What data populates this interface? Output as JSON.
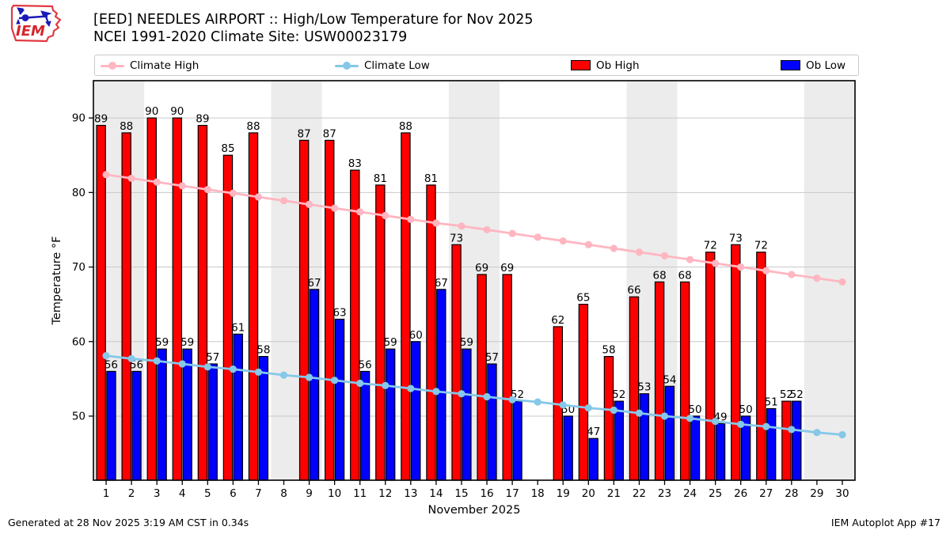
{
  "header": {
    "title_line1": "[EED] NEEDLES AIRPORT :: High/Low Temperature for Nov 2025",
    "title_line2": "NCEI 1991-2020 Climate Site: USW00023179",
    "logo_text": "IEM"
  },
  "legend": {
    "items": [
      {
        "label": "Climate High",
        "marker": "line-dot",
        "color": "#ffb6c1"
      },
      {
        "label": "Climate Low",
        "marker": "line-dot",
        "color": "#85c8e8"
      },
      {
        "label": "Ob High",
        "marker": "swatch",
        "color": "#ff0000"
      },
      {
        "label": "Ob Low",
        "marker": "swatch",
        "color": "#0000ff"
      }
    ]
  },
  "footer": {
    "generated": "Generated at 28 Nov 2025 3:19 AM CST in 0.34s",
    "app": "IEM Autoplot App #17"
  },
  "chart_data": {
    "type": "bar",
    "title": "[EED] NEEDLES AIRPORT :: High/Low Temperature for Nov 2025",
    "subtitle": "NCEI 1991-2020 Climate Site: USW00023179",
    "xlabel": "November 2025",
    "ylabel": "Temperature °F",
    "x": [
      1,
      2,
      3,
      4,
      5,
      6,
      7,
      8,
      9,
      10,
      11,
      12,
      13,
      14,
      15,
      16,
      17,
      18,
      19,
      20,
      21,
      22,
      23,
      24,
      25,
      26,
      27,
      28,
      29,
      30
    ],
    "ylim": [
      41.4,
      95
    ],
    "yticks": [
      50,
      60,
      70,
      80,
      90
    ],
    "grid": "horizontal",
    "legend_position": "top",
    "shaded_day_ranges": [
      [
        0.5,
        2.5
      ],
      [
        7.5,
        9.5
      ],
      [
        14.5,
        16.5
      ],
      [
        21.5,
        23.5
      ],
      [
        28.5,
        30.5
      ]
    ],
    "shade_color": "#ececec",
    "series": [
      {
        "name": "Ob High",
        "type": "bar",
        "color": "#ff0000",
        "values": [
          89,
          88,
          90,
          90,
          89,
          85,
          88,
          null,
          87,
          87,
          83,
          81,
          88,
          81,
          73,
          69,
          69,
          null,
          62,
          65,
          58,
          66,
          68,
          68,
          72,
          73,
          72,
          52,
          null,
          null
        ]
      },
      {
        "name": "Ob Low",
        "type": "bar",
        "color": "#0000ff",
        "values": [
          56,
          56,
          59,
          59,
          57,
          61,
          58,
          null,
          67,
          63,
          56,
          59,
          60,
          67,
          59,
          57,
          52,
          null,
          50,
          47,
          52,
          53,
          54,
          50,
          49,
          50,
          51,
          52,
          null,
          null
        ]
      },
      {
        "name": "Climate High",
        "type": "line",
        "color": "#ffb6c1",
        "values": [
          82.4,
          81.9,
          81.4,
          80.9,
          80.4,
          79.9,
          79.4,
          78.9,
          78.4,
          77.9,
          77.4,
          76.9,
          76.4,
          75.9,
          75.5,
          75.0,
          74.5,
          74.0,
          73.5,
          73.0,
          72.5,
          72.0,
          71.5,
          71.0,
          70.5,
          70.0,
          69.5,
          69.0,
          68.5,
          68.0
        ]
      },
      {
        "name": "Climate Low",
        "type": "line",
        "color": "#85c8e8",
        "values": [
          58.1,
          57.7,
          57.4,
          57.0,
          56.6,
          56.3,
          55.9,
          55.5,
          55.2,
          54.8,
          54.4,
          54.1,
          53.7,
          53.3,
          53.0,
          52.6,
          52.2,
          51.9,
          51.5,
          51.1,
          50.8,
          50.4,
          50.0,
          49.7,
          49.3,
          48.9,
          48.6,
          48.2,
          47.8,
          47.5
        ]
      }
    ]
  }
}
